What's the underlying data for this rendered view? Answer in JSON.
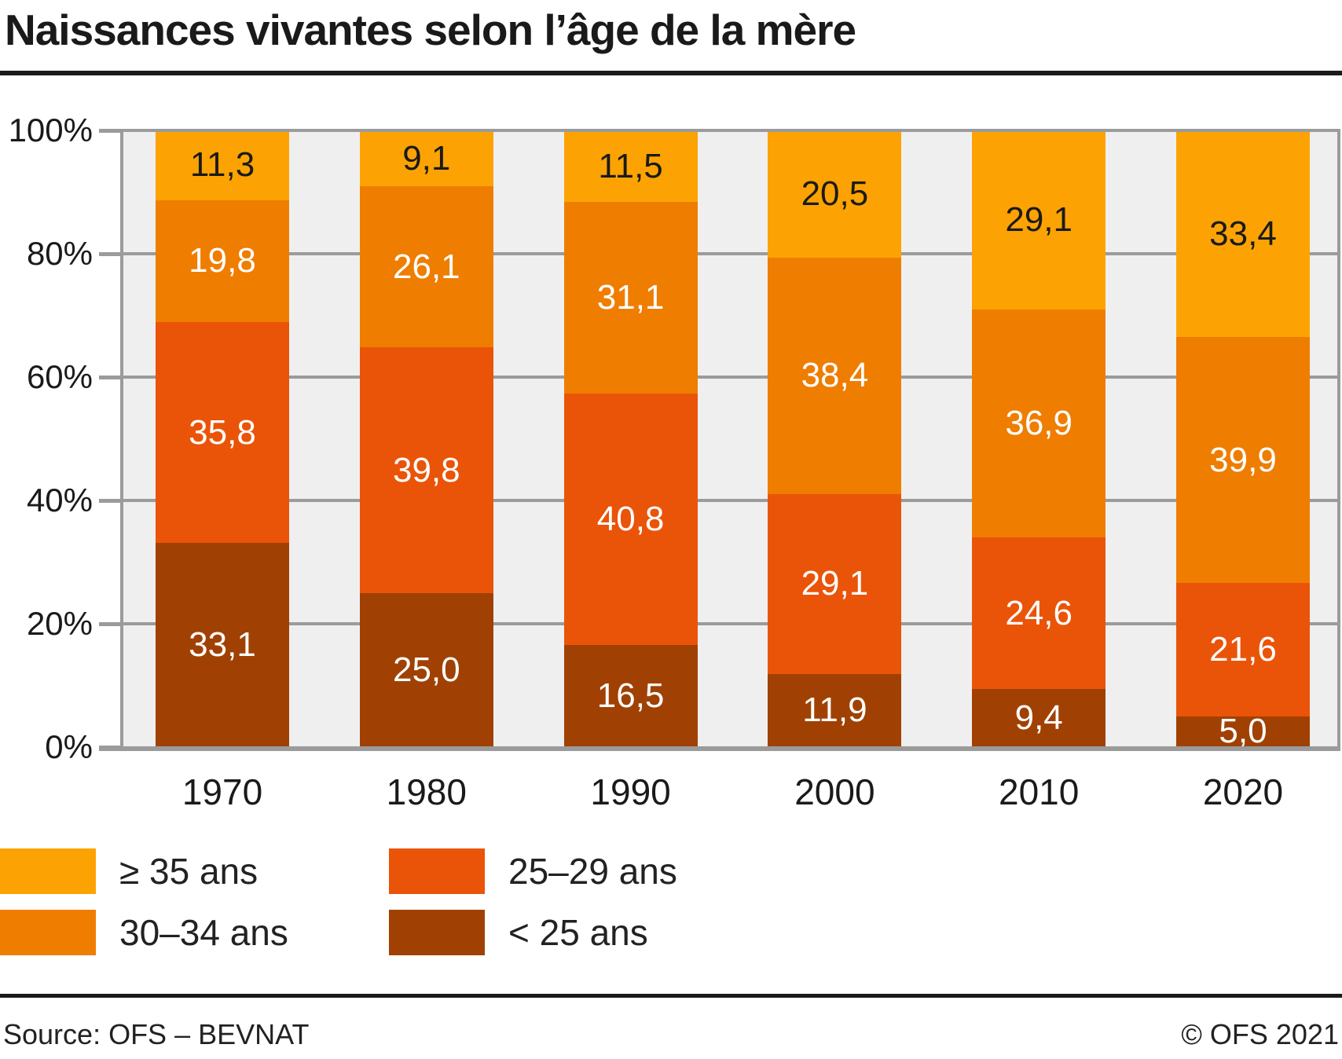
{
  "title": "Naissances vivantes selon l’âge de la mère",
  "chart_data": {
    "type": "bar",
    "stacked": true,
    "orientation": "vertical",
    "categories": [
      "1970",
      "1980",
      "1990",
      "2000",
      "2010",
      "2020"
    ],
    "series": [
      {
        "name": "< 25 ans",
        "color": "#a04103",
        "label_color": "#ffffff",
        "values": [
          33.1,
          25.0,
          16.5,
          11.9,
          9.4,
          5.0
        ]
      },
      {
        "name": "25–29 ans",
        "color": "#ea5408",
        "label_color": "#ffffff",
        "values": [
          35.8,
          39.8,
          40.8,
          29.1,
          24.6,
          21.6
        ]
      },
      {
        "name": "30–34 ans",
        "color": "#ef7d00",
        "label_color": "#ffffff",
        "values": [
          19.8,
          26.1,
          31.1,
          38.4,
          36.9,
          39.9
        ]
      },
      {
        "name": "≥ 35 ans",
        "color": "#fca303",
        "label_color": "#1a1a1a",
        "values": [
          11.3,
          9.1,
          11.5,
          20.5,
          29.1,
          33.4
        ]
      }
    ],
    "ylim": [
      0,
      100
    ],
    "yticks": [
      "100%",
      "80%",
      "60%",
      "40%",
      "20%",
      "0%"
    ],
    "grid": true,
    "plot_background": "#efefef",
    "gridline_color": "#9b9b9b",
    "legend_position": "bottom-left",
    "decimal_separator": ","
  },
  "footer": {
    "source": "Source: OFS – BEVNAT",
    "copyright": "© OFS 2021"
  }
}
